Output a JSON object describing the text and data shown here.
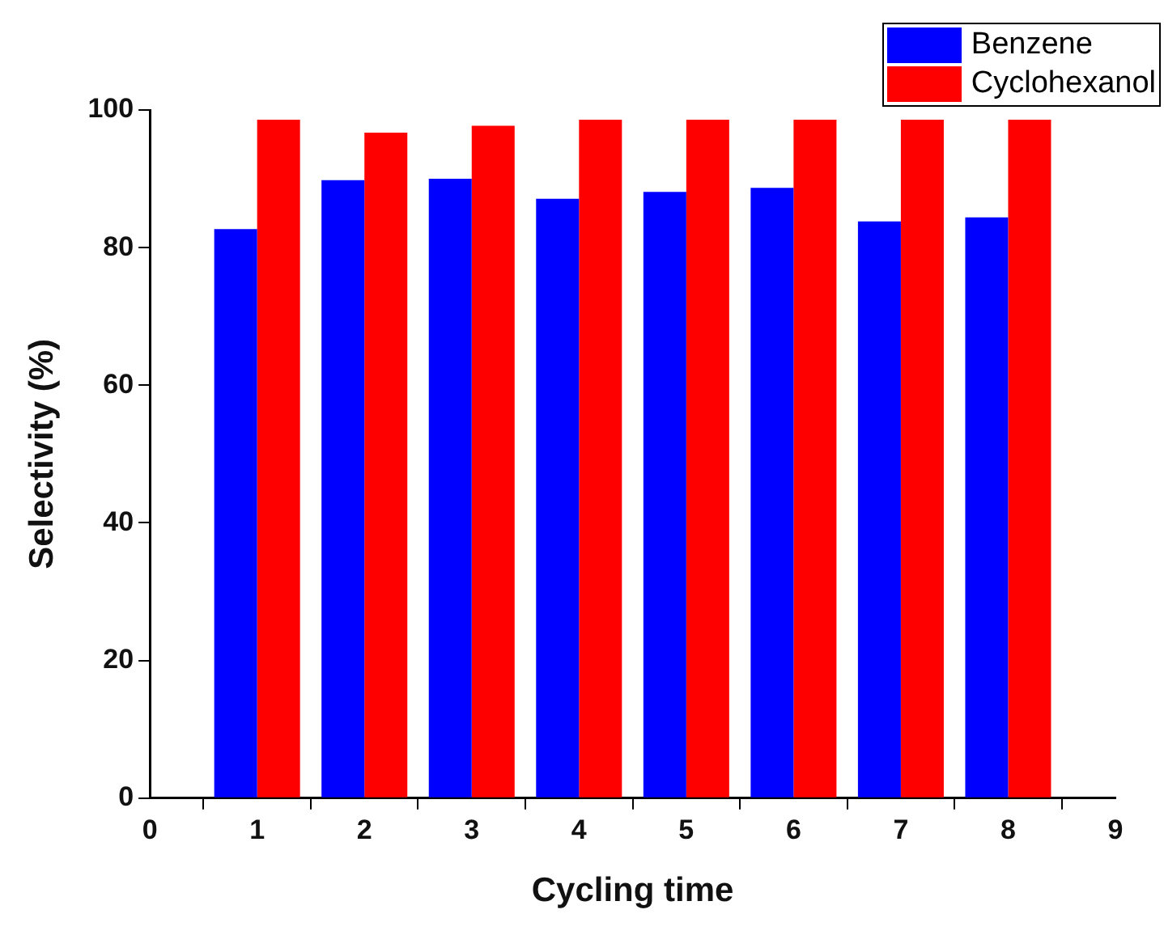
{
  "chart_data": {
    "type": "bar",
    "xlabel": "Cycling time",
    "ylabel": "Selectivity (%)",
    "x": [
      1,
      2,
      3,
      4,
      5,
      6,
      7,
      8
    ],
    "series": [
      {
        "name": "Benzene",
        "color": "#0000ff",
        "values": [
          82.7,
          89.8,
          90.0,
          87.1,
          88.1,
          88.7,
          83.8,
          84.4
        ]
      },
      {
        "name": "Cyclohexanol",
        "color": "#ff0000",
        "values": [
          98.6,
          96.7,
          97.7,
          98.6,
          98.6,
          98.6,
          98.6,
          98.6
        ]
      }
    ],
    "xlim": [
      0,
      9
    ],
    "xticks": [
      0,
      1,
      2,
      3,
      4,
      5,
      6,
      7,
      8,
      9
    ],
    "ylim": [
      0,
      100
    ],
    "yticks": [
      0,
      20,
      40,
      60,
      80,
      100
    ],
    "grid": false,
    "legend": "top right"
  }
}
